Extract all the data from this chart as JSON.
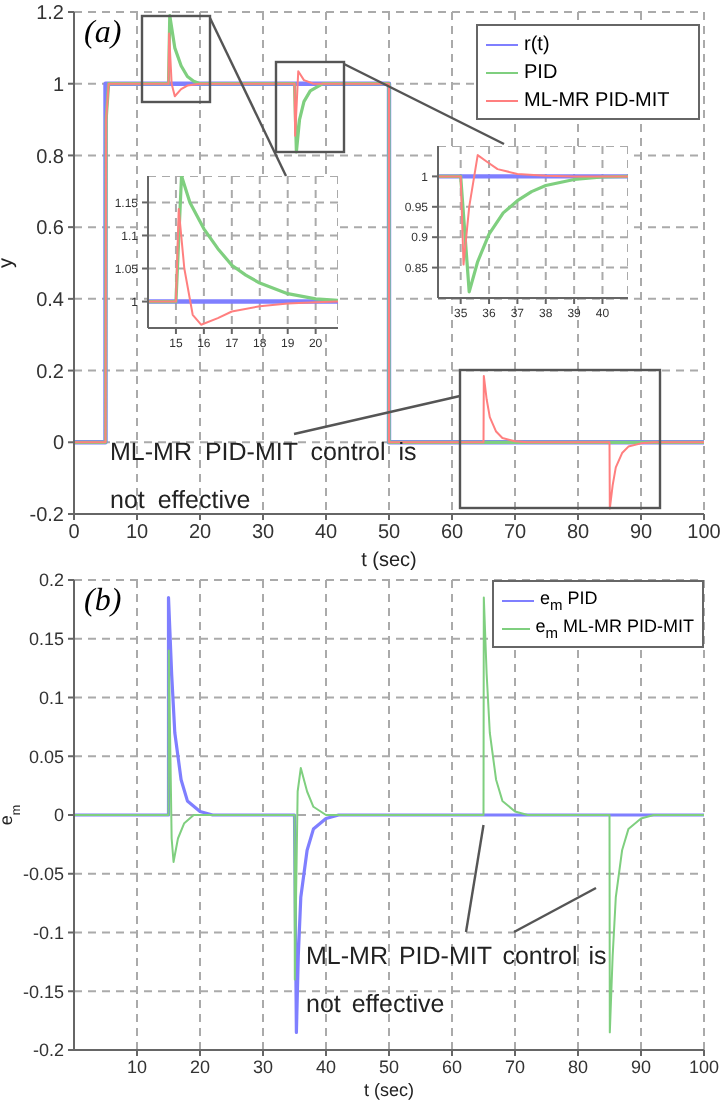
{
  "chart_data": [
    {
      "type": "line",
      "xlabel": "t (sec)",
      "ylabel": "y",
      "xlim": [
        0,
        100
      ],
      "ylim": [
        -0.2,
        1.2
      ],
      "xticks": [
        0,
        10,
        20,
        30,
        40,
        50,
        60,
        70,
        80,
        90,
        100
      ],
      "yticks": [
        -0.2,
        0,
        0.2,
        0.4,
        0.6,
        0.8,
        1,
        1.2
      ],
      "grid": true,
      "legend": "top right",
      "annotations": [
        "(a)",
        "ML-MR PID-MIT control is not effective"
      ],
      "series": [
        {
          "name": "r(t)",
          "color": "#7f7fff",
          "x": [
            0,
            5,
            5,
            50,
            50,
            100
          ],
          "values": [
            0,
            0,
            1,
            1,
            0,
            0
          ]
        },
        {
          "name": "PID",
          "color": "#7fcf7f",
          "x": [
            0,
            5,
            5.1,
            5.5,
            15,
            15.2,
            16,
            17,
            18,
            19,
            20,
            35,
            35.3,
            35.8,
            36.5,
            37.5,
            39.5,
            50,
            50,
            100
          ],
          "values": [
            0,
            0,
            0.9,
            1,
            1,
            1.19,
            1.1,
            1.05,
            1.02,
            1.007,
            1,
            1,
            0.81,
            0.9,
            0.95,
            0.98,
            1,
            1,
            0,
            0
          ]
        },
        {
          "name": "ML-MR PID-MIT",
          "color": "#ff7f7f",
          "x": [
            0,
            5,
            5.1,
            5.5,
            15,
            15.1,
            15.5,
            16,
            17,
            18,
            20,
            35,
            35.1,
            35.6,
            36.5,
            38,
            50,
            50,
            65,
            65.05,
            65.5,
            66,
            67,
            68,
            70,
            72,
            85,
            85.05,
            85.5,
            86,
            87,
            88,
            90,
            92,
            100
          ],
          "values": [
            0,
            0,
            0.9,
            1,
            1,
            1.14,
            1,
            0.965,
            0.985,
            0.995,
            1,
            1,
            0.855,
            1.035,
            1.01,
            1,
            1,
            0,
            0,
            0.185,
            0.12,
            0.07,
            0.03,
            0.012,
            0.003,
            0,
            0,
            -0.185,
            -0.12,
            -0.07,
            -0.03,
            -0.012,
            -0.003,
            0,
            0
          ]
        }
      ]
    },
    {
      "type": "line",
      "xlim": [
        14,
        20.8
      ],
      "ylim": [
        0.96,
        1.19
      ],
      "xticks": [
        15,
        16,
        17,
        18,
        19,
        20
      ],
      "yticks": [
        1,
        1.05,
        1.1,
        1.15
      ],
      "grid": true,
      "series": [
        {
          "color": "#7f7fff",
          "x": [
            14,
            20.8
          ],
          "values": [
            1,
            1
          ]
        },
        {
          "color": "#7fcf7f",
          "x": [
            14,
            15,
            15.2,
            15.5,
            16,
            16.5,
            17,
            17.5,
            18,
            19,
            20,
            20.8
          ],
          "values": [
            1,
            1,
            1.19,
            1.15,
            1.11,
            1.08,
            1.055,
            1.04,
            1.028,
            1.012,
            1.004,
            1.002
          ]
        },
        {
          "color": "#ff7f7f",
          "x": [
            14,
            15,
            15.1,
            15.3,
            15.6,
            15.9,
            16.5,
            17,
            18,
            19,
            20,
            20.8
          ],
          "values": [
            1,
            1,
            1.14,
            1.05,
            0.98,
            0.965,
            0.975,
            0.985,
            0.993,
            0.997,
            0.999,
            1
          ]
        }
      ]
    },
    {
      "type": "line",
      "xlim": [
        34.2,
        40.9
      ],
      "ylim": [
        0.8,
        1.05
      ],
      "xticks": [
        35,
        36,
        37,
        38,
        39,
        40
      ],
      "yticks": [
        0.85,
        0.9,
        0.95,
        1
      ],
      "grid": true,
      "series": [
        {
          "color": "#7f7fff",
          "x": [
            34.2,
            40.9
          ],
          "values": [
            1,
            1
          ]
        },
        {
          "color": "#7fcf7f",
          "x": [
            34.2,
            35,
            35.3,
            35.6,
            36,
            36.5,
            37,
            37.5,
            38,
            39,
            40,
            40.9
          ],
          "values": [
            1,
            1,
            0.81,
            0.86,
            0.905,
            0.94,
            0.96,
            0.975,
            0.985,
            0.995,
            0.999,
            1
          ]
        },
        {
          "color": "#ff7f7f",
          "x": [
            34.2,
            35,
            35.1,
            35.3,
            35.6,
            35.9,
            36.3,
            37,
            38,
            39,
            40.9
          ],
          "values": [
            1,
            1,
            0.855,
            0.95,
            1.035,
            1.025,
            1.012,
            1.004,
            1.001,
            1,
            1
          ]
        }
      ]
    },
    {
      "type": "line",
      "xlabel": "t (sec)",
      "ylabel": "e$_{m}$",
      "xlim": [
        0,
        100
      ],
      "ylim": [
        -0.2,
        0.2
      ],
      "xticks": [
        10,
        20,
        30,
        40,
        50,
        60,
        70,
        80,
        90,
        100
      ],
      "yticks": [
        -0.2,
        -0.15,
        -0.1,
        -0.05,
        0,
        0.05,
        0.1,
        0.15,
        0.2
      ],
      "grid": true,
      "legend": "top right",
      "annotations": [
        "(b)",
        {
          "text": "ML-MR PID-MIT control is not effective",
          "x": 65,
          "y": 0
        }
      ],
      "series": [
        {
          "name": "e$_{m}$ PID",
          "color": "#7f7fff",
          "x": [
            0,
            15,
            15,
            15.5,
            16,
            17,
            18,
            20,
            22,
            35,
            35.3,
            35.6,
            36,
            37,
            38,
            40,
            42,
            100
          ],
          "values": [
            0,
            0,
            0.185,
            0.12,
            0.07,
            0.03,
            0.012,
            0.003,
            0,
            0,
            -0.185,
            -0.12,
            -0.07,
            -0.03,
            -0.012,
            -0.003,
            0,
            0
          ]
        },
        {
          "name": "e$_{m}$ ML-MR PID-MIT",
          "color": "#7fcf7f",
          "x": [
            0,
            15,
            15.05,
            15.5,
            15.8,
            16.5,
            17.5,
            19,
            35,
            35.05,
            35.5,
            36,
            37,
            38,
            40,
            65,
            65.05,
            65.5,
            66,
            67,
            68,
            70,
            72,
            85,
            85.05,
            85.5,
            86,
            87,
            88,
            90,
            92,
            100
          ],
          "values": [
            0,
            0,
            0.14,
            -0.02,
            -0.04,
            -0.02,
            -0.007,
            0,
            0,
            -0.14,
            0.02,
            0.04,
            0.02,
            0.007,
            0,
            0,
            0.185,
            0.12,
            0.07,
            0.03,
            0.012,
            0.003,
            0,
            0,
            -0.185,
            -0.12,
            -0.07,
            -0.03,
            -0.012,
            -0.003,
            0,
            0
          ]
        }
      ]
    }
  ]
}
